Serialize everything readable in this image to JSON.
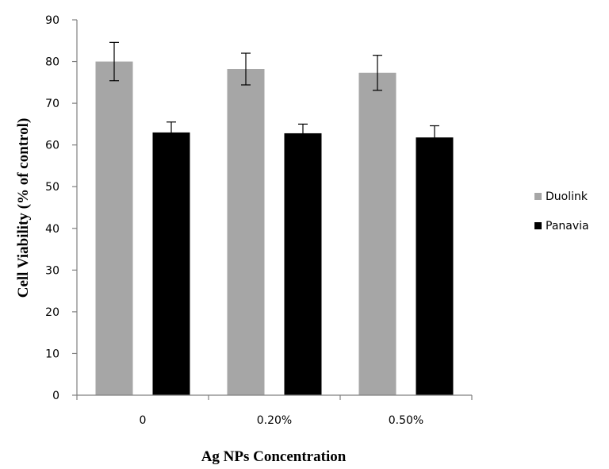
{
  "chart_data": {
    "type": "bar",
    "title": "",
    "xlabel": "Ag NPs Concentration",
    "ylabel": "Cell Viability (% of control)",
    "categories": [
      "0",
      "0.20%",
      "0.50%"
    ],
    "ylim": [
      0,
      90
    ],
    "yticks": [
      0,
      10,
      20,
      30,
      40,
      50,
      60,
      70,
      80,
      90
    ],
    "grid": false,
    "legend_position": "right",
    "series": [
      {
        "name": "Duolink",
        "color": "#a6a6a6",
        "values": [
          80,
          78.2,
          77.3
        ],
        "errors": [
          4.6,
          3.8,
          4.2
        ]
      },
      {
        "name": "Panavia",
        "color": "#000000",
        "values": [
          63,
          62.8,
          61.8
        ],
        "errors": [
          2.5,
          2.2,
          2.8
        ]
      }
    ]
  }
}
